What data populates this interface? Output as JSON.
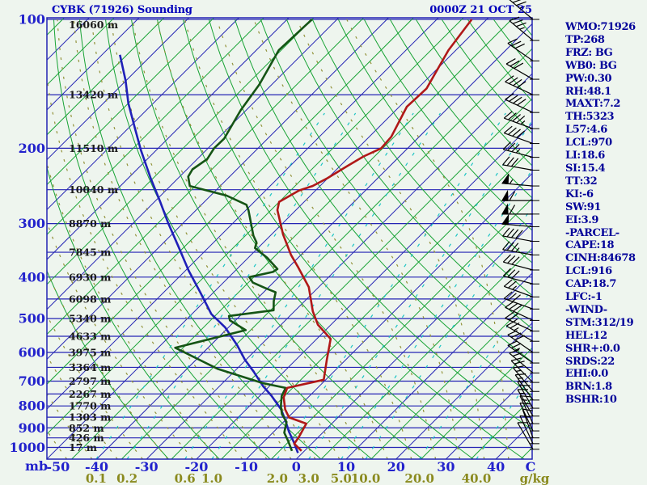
{
  "app": {
    "title": "CYBK (71926) Sounding",
    "datetime": "0000Z 21 OCT 25"
  },
  "info_panel": {
    "lines": [
      "WMO:71926",
      "TP:268",
      "FRZ: BG",
      "WB0: BG",
      "PW:0.30",
      "RH:48.1",
      "MAXT:7.2",
      "TH:5323",
      "L57:4.6",
      "LCL:970",
      "LI:18.6",
      "SI:15.4",
      "TT:32",
      "KI:-6",
      "SW:91",
      "EI:3.9",
      "-PARCEL-",
      "CAPE:18",
      "CINH:84678",
      "LCL:916",
      "CAP:18.7",
      "LFC:-1",
      "-WIND-",
      "STM:312/19",
      "HEL:12",
      "SHR+:0.0",
      "SRDS:22",
      "EHI:0.0",
      "BRN:1.8",
      "BSHR:10"
    ]
  },
  "chart_data": {
    "type": "skewt-logp-sounding",
    "title": "CYBK (71926) Sounding",
    "valid": "0000Z 21 OCT 25",
    "pressure_axis": {
      "label": "mb",
      "labeled_levels": [
        100,
        200,
        300,
        400,
        500,
        600,
        700,
        800,
        900,
        1000
      ],
      "line_levels": [
        100,
        150,
        200,
        250,
        300,
        350,
        400,
        450,
        500,
        550,
        600,
        650,
        700,
        750,
        800,
        850,
        900,
        950,
        1000
      ]
    },
    "heights": [
      [
        100,
        "16060 m"
      ],
      [
        150,
        "13420 m"
      ],
      [
        200,
        "11510 m"
      ],
      [
        250,
        "10040 m"
      ],
      [
        300,
        "8870 m"
      ],
      [
        350,
        "7845 m"
      ],
      [
        400,
        "6930 m"
      ],
      [
        450,
        "6098 m"
      ],
      [
        500,
        "5340 m"
      ],
      [
        550,
        "4633 m"
      ],
      [
        600,
        "3975 m"
      ],
      [
        650,
        "3364 m"
      ],
      [
        700,
        "2797 m"
      ],
      [
        750,
        "2267 m"
      ],
      [
        800,
        "1770 m"
      ],
      [
        850,
        "1303 m"
      ],
      [
        900,
        "852 m"
      ],
      [
        950,
        "426 m"
      ],
      [
        1000,
        "17 m"
      ]
    ],
    "temp_axis": {
      "label": "C",
      "ticks": [
        -50,
        -40,
        -30,
        -20,
        -10,
        0,
        10,
        20,
        30,
        40
      ],
      "skew_deg": 45
    },
    "mixing_ratio_axis": {
      "label": "g/kg",
      "ticks": [
        {
          "v": "0.1",
          "t": -40.1
        },
        {
          "v": "0.2",
          "t": -33.9
        },
        {
          "v": "0.6",
          "t": -22.3
        },
        {
          "v": "1.0",
          "t": -16.9
        },
        {
          "v": "2.0",
          "t": -3.8
        },
        {
          "v": "3.0",
          "t": 2.5
        },
        {
          "v": "5.0",
          "t": 9.0
        },
        {
          "v": "10.0",
          "t": 13.9
        },
        {
          "v": "20.0",
          "t": 24.7
        },
        {
          "v": "40.0",
          "t": 36.1
        }
      ]
    },
    "grid": {
      "isotherm_step": 10,
      "dry_adiabat_thetas_start": -30,
      "dry_adiabat_thetas_end": 180,
      "moist_adiabat_thetaw_start": -55,
      "moist_adiabat_thetaw_end": 40
    },
    "temperature_profile": [
      [
        100,
        -53
      ],
      [
        118,
        -51.5
      ],
      [
        145,
        -48.2
      ],
      [
        160,
        -48.5
      ],
      [
        188,
        -45.6
      ],
      [
        200,
        -45.3
      ],
      [
        209,
        -47.2
      ],
      [
        220,
        -48.5
      ],
      [
        235,
        -50.1
      ],
      [
        245,
        -51.5
      ],
      [
        251,
        -53.3
      ],
      [
        267,
        -55.0
      ],
      [
        279,
        -53.7
      ],
      [
        318,
        -47.7
      ],
      [
        355,
        -42.0
      ],
      [
        378,
        -38.3
      ],
      [
        422,
        -32.0
      ],
      [
        481,
        -26.3
      ],
      [
        517,
        -22.6
      ],
      [
        558,
        -17.2
      ],
      [
        624,
        -13.8
      ],
      [
        695,
        -10.4
      ],
      [
        726,
        -16.1
      ],
      [
        764,
        -14.9
      ],
      [
        815,
        -12.2
      ],
      [
        851,
        -9.8
      ],
      [
        880,
        -5.1
      ],
      [
        946,
        -3.9
      ],
      [
        980,
        -3.5
      ],
      [
        1019,
        -0.6
      ]
    ],
    "dewpoint_profile": [
      [
        100,
        -85
      ],
      [
        118,
        -85.5
      ],
      [
        142,
        -82.5
      ],
      [
        163,
        -81.1
      ],
      [
        190,
        -78.7
      ],
      [
        200,
        -78.8
      ],
      [
        212,
        -78.0
      ],
      [
        224,
        -78.9
      ],
      [
        233,
        -78.3
      ],
      [
        245,
        -76.1
      ],
      [
        258,
        -66.8
      ],
      [
        271,
        -61.0
      ],
      [
        279,
        -59.5
      ],
      [
        320,
        -53.4
      ],
      [
        332,
        -51.4
      ],
      [
        342,
        -50.6
      ],
      [
        361,
        -46.1
      ],
      [
        383,
        -41.9
      ],
      [
        389,
        -42.2
      ],
      [
        400,
        -45.9
      ],
      [
        412,
        -44.1
      ],
      [
        424,
        -40.6
      ],
      [
        434,
        -37.6
      ],
      [
        455,
        -36.2
      ],
      [
        478,
        -34.4
      ],
      [
        493,
        -42.2
      ],
      [
        505,
        -41.1
      ],
      [
        532,
        -36.0
      ],
      [
        585,
        -46.6
      ],
      [
        655,
        -33.9
      ],
      [
        707,
        -22.1
      ],
      [
        726,
        -16.4
      ],
      [
        758,
        -15.6
      ],
      [
        801,
        -13.7
      ],
      [
        836,
        -11.9
      ],
      [
        872,
        -9.4
      ],
      [
        924,
        -7.7
      ],
      [
        967,
        -5.2
      ],
      [
        1019,
        -2.5
      ]
    ],
    "wetbulb_parcel_curve": [
      [
        121,
        -116.4
      ],
      [
        139,
        -110.1
      ],
      [
        157,
        -105.0
      ],
      [
        181,
        -98.3
      ],
      [
        202,
        -93.1
      ],
      [
        235,
        -85.5
      ],
      [
        265,
        -79.2
      ],
      [
        298,
        -73.2
      ],
      [
        339,
        -66.3
      ],
      [
        386,
        -59.4
      ],
      [
        434,
        -52.7
      ],
      [
        488,
        -46.1
      ],
      [
        524,
        -40.7
      ],
      [
        577,
        -34.7
      ],
      [
        624,
        -30.2
      ],
      [
        665,
        -26.1
      ],
      [
        719,
        -21.3
      ],
      [
        757,
        -17.7
      ],
      [
        815,
        -13.0
      ],
      [
        862,
        -10.1
      ],
      [
        920,
        -6.9
      ],
      [
        972,
        -3.9
      ],
      [
        1030,
        -0.9
      ]
    ],
    "wind_barbs": [
      {
        "p": 100,
        "dir": 310,
        "spd": 35
      },
      {
        "p": 112,
        "dir": 310,
        "spd": 35
      },
      {
        "p": 125,
        "dir": 305,
        "spd": 30
      },
      {
        "p": 138,
        "dir": 300,
        "spd": 30
      },
      {
        "p": 150,
        "dir": 295,
        "spd": 40
      },
      {
        "p": 165,
        "dir": 295,
        "spd": 40
      },
      {
        "p": 180,
        "dir": 290,
        "spd": 45
      },
      {
        "p": 195,
        "dir": 290,
        "spd": 40
      },
      {
        "p": 210,
        "dir": 285,
        "spd": 35
      },
      {
        "p": 225,
        "dir": 280,
        "spd": 30
      },
      {
        "p": 245,
        "dir": 275,
        "spd": 55
      },
      {
        "p": 265,
        "dir": 270,
        "spd": 60
      },
      {
        "p": 285,
        "dir": 270,
        "spd": 60
      },
      {
        "p": 305,
        "dir": 275,
        "spd": 50
      },
      {
        "p": 330,
        "dir": 280,
        "spd": 40
      },
      {
        "p": 355,
        "dir": 280,
        "spd": 35
      },
      {
        "p": 385,
        "dir": 285,
        "spd": 30
      },
      {
        "p": 415,
        "dir": 285,
        "spd": 30
      },
      {
        "p": 445,
        "dir": 290,
        "spd": 25
      },
      {
        "p": 475,
        "dir": 290,
        "spd": 30
      },
      {
        "p": 505,
        "dir": 295,
        "spd": 30
      },
      {
        "p": 535,
        "dir": 295,
        "spd": 25
      },
      {
        "p": 565,
        "dir": 300,
        "spd": 25
      },
      {
        "p": 600,
        "dir": 305,
        "spd": 30
      },
      {
        "p": 635,
        "dir": 305,
        "spd": 25
      },
      {
        "p": 670,
        "dir": 310,
        "spd": 20
      },
      {
        "p": 705,
        "dir": 315,
        "spd": 20
      },
      {
        "p": 740,
        "dir": 320,
        "spd": 15
      },
      {
        "p": 775,
        "dir": 325,
        "spd": 15
      },
      {
        "p": 810,
        "dir": 330,
        "spd": 20
      },
      {
        "p": 845,
        "dir": 330,
        "spd": 15
      },
      {
        "p": 880,
        "dir": 335,
        "spd": 15
      },
      {
        "p": 915,
        "dir": 335,
        "spd": 10
      },
      {
        "p": 950,
        "dir": 340,
        "spd": 10
      },
      {
        "p": 980,
        "dir": 335,
        "spd": 10
      },
      {
        "p": 1010,
        "dir": 330,
        "spd": 10
      }
    ],
    "colors": {
      "frame": "#2424b4",
      "isotherm": "#2424b4",
      "isotherm_minor": "#18a335",
      "dry_adiabat": "#18a335",
      "moist_adiabat": "#92923a",
      "mixing_ratio": "#1ac4c4",
      "temperature": "#b01818",
      "dewpoint": "#155415",
      "wetbulb": "#2020b8",
      "heights_text": "#1b1b1b",
      "axis_text": "#2222cc",
      "mix_text": "#8a8a1e",
      "barbs": "#000000",
      "background": "#eef5ee"
    }
  }
}
